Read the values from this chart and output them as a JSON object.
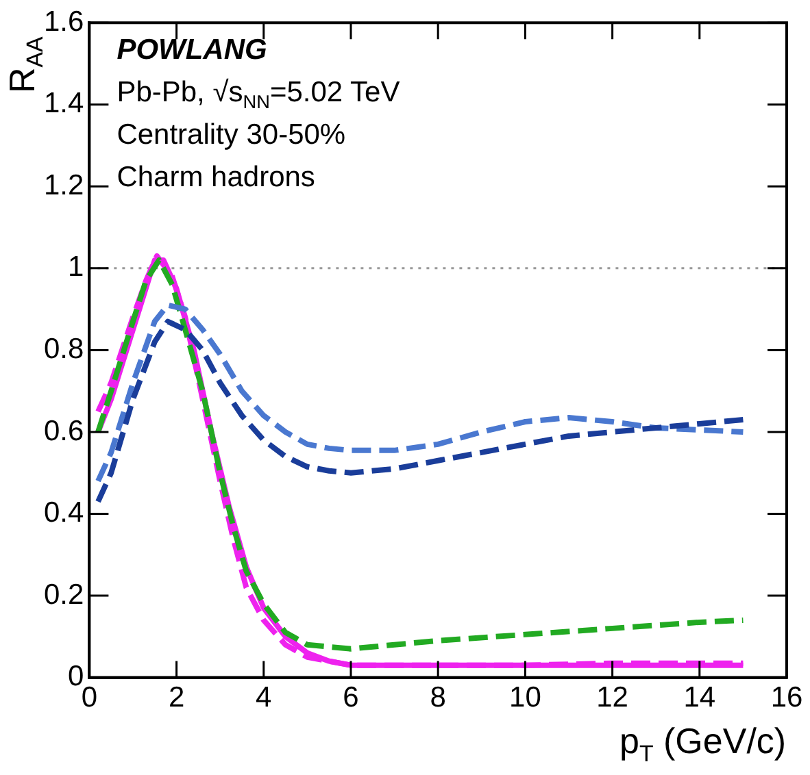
{
  "chart_data": {
    "type": "line",
    "xlabel": "p$_{T}$ (GeV/c)",
    "ylabel": "R$_{AA}$",
    "annotations": [
      "POWLANG",
      "Pb-Pb, √s$_{NN}$=5.02 TeV",
      "Centrality 30-50%",
      "Charm hadrons"
    ],
    "xlim": [
      0,
      16
    ],
    "xticks": [
      0,
      2,
      4,
      6,
      8,
      10,
      12,
      14,
      16
    ],
    "ylim": [
      0,
      1.6
    ],
    "yticks": [
      0,
      0.2,
      0.4,
      0.6,
      0.8,
      1,
      1.2,
      1.4,
      1.6
    ],
    "grid": false,
    "legend": false,
    "marker": "none",
    "ref_lines": [
      {
        "axis": "y",
        "value": 1,
        "color": "#999999",
        "line_style": "dotted"
      }
    ],
    "series": [
      {
        "color": "#1a3d9a",
        "line_style": "dashed",
        "x": [
          0.2,
          0.5,
          1,
          1.5,
          1.8,
          2.2,
          2.6,
          3,
          3.5,
          4,
          4.5,
          5,
          5.5,
          6,
          7,
          8,
          9,
          10,
          11,
          12,
          13,
          14,
          15
        ],
        "values": [
          0.43,
          0.5,
          0.68,
          0.82,
          0.87,
          0.85,
          0.8,
          0.72,
          0.64,
          0.58,
          0.54,
          0.515,
          0.505,
          0.5,
          0.51,
          0.53,
          0.55,
          0.57,
          0.59,
          0.6,
          0.61,
          0.62,
          0.63
        ]
      },
      {
        "color": "#4a78d0",
        "line_style": "dashed",
        "x": [
          0.2,
          0.5,
          1,
          1.5,
          1.8,
          2.2,
          2.6,
          3,
          3.5,
          4,
          4.5,
          5,
          5.5,
          6,
          7,
          8,
          9,
          10,
          11,
          12,
          13,
          14,
          15
        ],
        "values": [
          0.48,
          0.55,
          0.72,
          0.87,
          0.91,
          0.9,
          0.85,
          0.79,
          0.7,
          0.64,
          0.6,
          0.57,
          0.56,
          0.555,
          0.555,
          0.57,
          0.6,
          0.625,
          0.635,
          0.625,
          0.61,
          0.605,
          0.6
        ]
      },
      {
        "color": "#22aa22",
        "line_style": "dashed",
        "x": [
          0.2,
          0.5,
          1,
          1.3,
          1.6,
          1.9,
          2.2,
          2.6,
          3,
          3.3,
          3.6,
          4,
          4.5,
          5,
          6,
          7,
          8,
          10,
          12,
          14,
          15
        ],
        "values": [
          0.6,
          0.7,
          0.87,
          0.97,
          1.02,
          0.96,
          0.85,
          0.7,
          0.5,
          0.37,
          0.26,
          0.18,
          0.11,
          0.08,
          0.07,
          0.08,
          0.09,
          0.105,
          0.12,
          0.135,
          0.14
        ]
      },
      {
        "color": "#ee22ee",
        "line_style": "solid",
        "x": [
          0.2,
          0.5,
          1,
          1.5,
          1.7,
          2,
          2.4,
          2.8,
          3.2,
          3.6,
          4,
          4.5,
          5,
          5.5,
          6,
          8,
          10,
          12,
          14,
          15
        ],
        "values": [
          0.6,
          0.68,
          0.85,
          1.02,
          1.02,
          0.95,
          0.8,
          0.6,
          0.42,
          0.27,
          0.17,
          0.1,
          0.06,
          0.04,
          0.03,
          0.03,
          0.03,
          0.03,
          0.03,
          0.03
        ]
      },
      {
        "color": "#ee22ee",
        "line_style": "dashed",
        "x": [
          0.2,
          0.5,
          1,
          1.3,
          1.55,
          1.9,
          2.2,
          2.6,
          3,
          3.3,
          3.6,
          4,
          4.5,
          5,
          6,
          8,
          10,
          12,
          14,
          15
        ],
        "values": [
          0.65,
          0.72,
          0.88,
          0.97,
          1.03,
          0.98,
          0.88,
          0.68,
          0.48,
          0.34,
          0.22,
          0.14,
          0.08,
          0.05,
          0.03,
          0.03,
          0.03,
          0.035,
          0.035,
          0.035
        ]
      }
    ]
  }
}
